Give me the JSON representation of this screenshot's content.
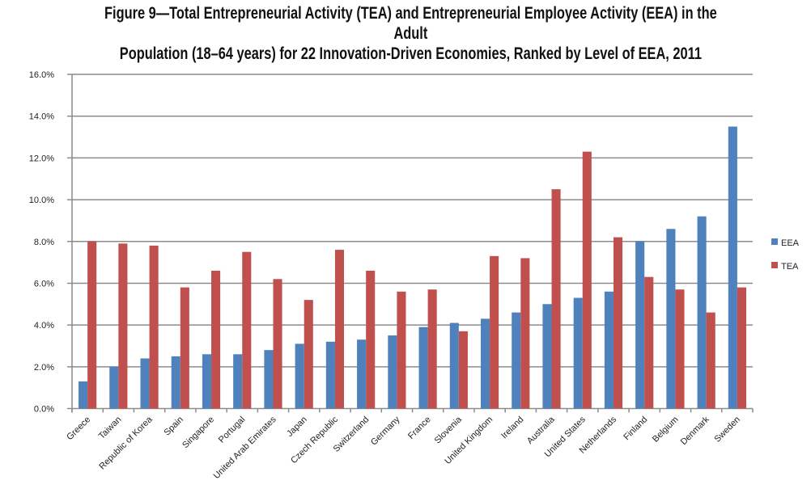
{
  "chart_data": {
    "type": "bar",
    "title": "Figure 9—Total Entrepreneurial Activity (TEA) and Entrepreneurial Employee Activity (EEA) in the Adult Population (18–64 years) for 22 Innovation-Driven Economies, Ranked by Level of EEA, 2011",
    "title_lines": [
      "Figure 9—Total Entrepreneurial Activity (TEA) and Entrepreneurial Employee Activity (EEA) in the Adult",
      "Population (18–64 years) for 22 Innovation-Driven Economies, Ranked by Level of EEA, 2011"
    ],
    "xlabel": "",
    "ylabel": "",
    "ylim": [
      0,
      16
    ],
    "yticks": [
      "0.0%",
      "2.0%",
      "4.0%",
      "6.0%",
      "8.0%",
      "10.0%",
      "12.0%",
      "14.0%",
      "16.0%"
    ],
    "grid": true,
    "legend": "right",
    "categories": [
      "Greece",
      "Taiwan",
      "Republic of Korea",
      "Spain",
      "Singapore",
      "Portugal",
      "United Arab Emirates",
      "Japan",
      "Czech Republic",
      "Switzerland",
      "Germany",
      "France",
      "Slovenia",
      "United Kingdom",
      "Ireland",
      "Australia",
      "United States",
      "Netherlands",
      "Finland",
      "Belgium",
      "Denmark",
      "Sweden"
    ],
    "series": [
      {
        "name": "EEA",
        "color": "#4f81bd",
        "values": [
          1.3,
          2.0,
          2.4,
          2.5,
          2.6,
          2.6,
          2.8,
          3.1,
          3.2,
          3.3,
          3.5,
          3.9,
          4.1,
          4.3,
          4.6,
          5.0,
          5.3,
          5.6,
          8.0,
          8.6,
          9.2,
          13.5
        ]
      },
      {
        "name": "TEA",
        "color": "#c0504d",
        "values": [
          8.0,
          7.9,
          7.8,
          5.8,
          6.6,
          7.5,
          6.2,
          5.2,
          7.6,
          6.6,
          5.6,
          5.7,
          3.7,
          7.3,
          7.2,
          10.5,
          12.3,
          8.2,
          6.3,
          5.7,
          4.6,
          5.8
        ]
      }
    ]
  }
}
